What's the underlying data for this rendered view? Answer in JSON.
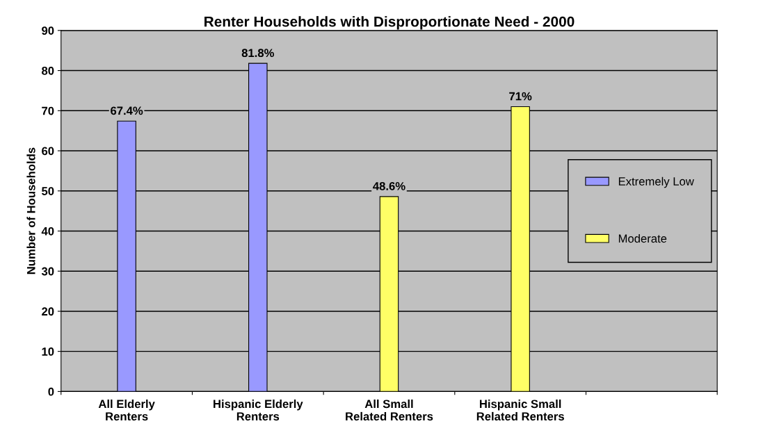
{
  "chart_data": {
    "type": "bar",
    "title": "Renter Households with Disproportionate Need - 2000",
    "ylabel": "Number of Households",
    "categories": [
      "All Elderly Renters",
      "Hispanic Elderly Renters",
      "All Small Related Renters",
      "Hispanic Small Related Renters",
      null
    ],
    "series": [
      {
        "name": "Extremely Low",
        "color": "#9999ff",
        "values": [
          67.4,
          81.8,
          null,
          null,
          null
        ],
        "value_labels": [
          "67.4%",
          "81.8%",
          null,
          null,
          null
        ]
      },
      {
        "name": "Moderate",
        "color": "#ffff66",
        "values": [
          null,
          null,
          48.6,
          71,
          null
        ],
        "value_labels": [
          null,
          null,
          "48.6%",
          "71%",
          null
        ]
      }
    ],
    "ylim": [
      0,
      90
    ],
    "yticks": [
      0,
      10,
      20,
      30,
      40,
      50,
      60,
      70,
      80,
      90
    ],
    "grid": "y",
    "legend": "right"
  }
}
